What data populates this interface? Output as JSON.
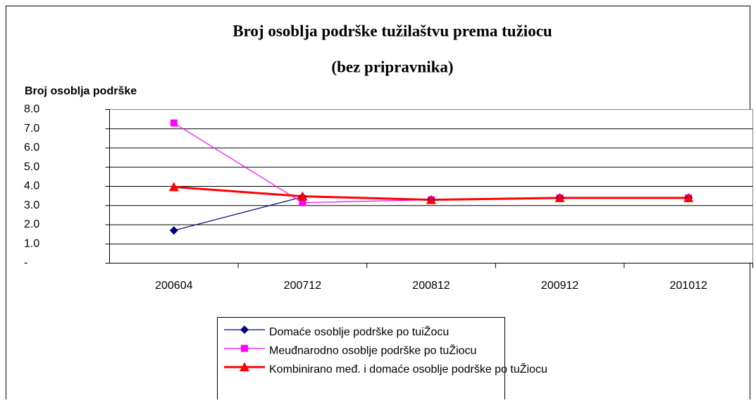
{
  "chart_data": {
    "type": "line",
    "title": "Broj osoblja podrške tužilaštvu prema tužiocu",
    "subtitle": "(bez pripravnika)",
    "y_label": "Broj osoblja podrške",
    "categories": [
      "200604",
      "200712",
      "200812",
      "200912",
      "201012"
    ],
    "series": [
      {
        "name": "Domaće osoblje podrške po tuiŽocu",
        "color": "#000080",
        "marker": "diamond",
        "values": [
          1.7,
          3.45,
          3.3,
          3.4,
          3.4
        ]
      },
      {
        "name": "Meuđnarodno osoblje podrške po tuŽiocu",
        "color": "#ff00ff",
        "marker": "square",
        "values": [
          7.3,
          3.15,
          3.3,
          3.4,
          3.4
        ]
      },
      {
        "name": "Kombinirano međ. i domaće osoblje podrške po tuŽiocu",
        "color": "#ff0000",
        "marker": "triangle",
        "values": [
          3.97,
          3.48,
          3.3,
          3.4,
          3.4
        ]
      }
    ],
    "ylim": [
      0,
      8
    ],
    "yticks": [
      {
        "value": 0,
        "label": "-"
      },
      {
        "value": 1,
        "label": "1.0"
      },
      {
        "value": 2,
        "label": "2.0"
      },
      {
        "value": 3,
        "label": "3.0"
      },
      {
        "value": 4,
        "label": "4.0"
      },
      {
        "value": 5,
        "label": "5.0"
      },
      {
        "value": 6,
        "label": "6.0"
      },
      {
        "value": 7,
        "label": "7.0"
      },
      {
        "value": 8,
        "label": "8.0"
      }
    ],
    "grid": true
  }
}
